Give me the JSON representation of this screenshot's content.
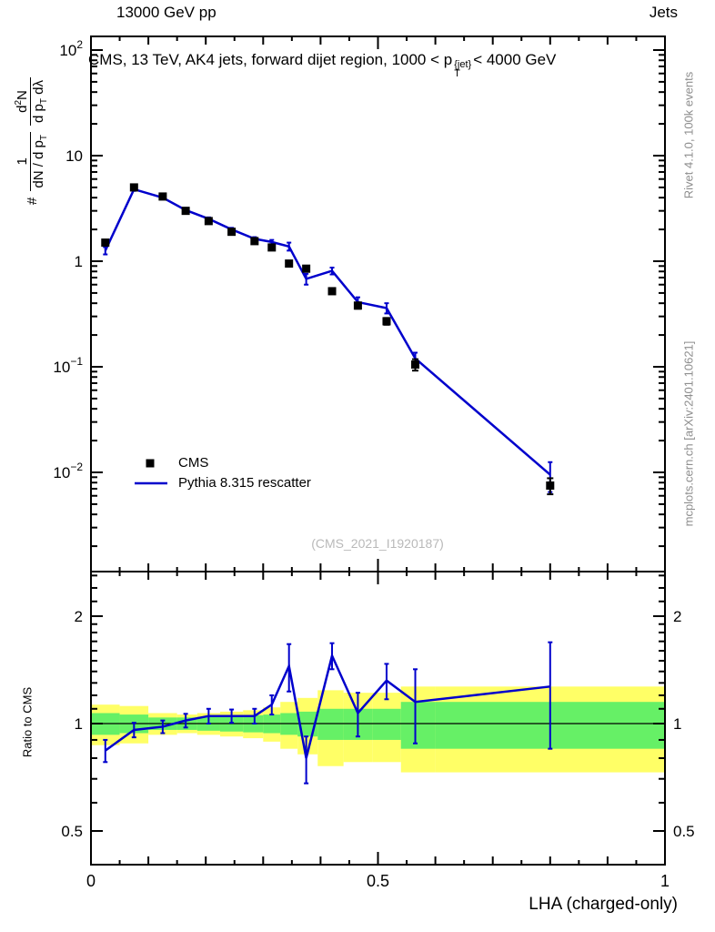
{
  "header": {
    "left": "13000 GeV pp",
    "right": "Jets"
  },
  "title": {
    "part1": "CMS, 13 TeV, AK4 jets, forward dijet region, 1000 < p",
    "sup": "{jet}",
    "sub": "T",
    "part2": "< 4000 GeV"
  },
  "ylabel": {
    "prefix": "#",
    "f1num": "1",
    "f1den_a": "dN / d p",
    "f1den_sub": "T",
    "f2num_a": "d",
    "f2num_sup": "2",
    "f2num_b": "N",
    "f2den_a": "d p",
    "f2den_sub": "T",
    "f2den_b": " dλ"
  },
  "side_notes": {
    "top": "Rivet 4.1.0, 100k events",
    "bottom": "mcplots.cern.ch [arXiv:2401.10621]"
  },
  "watermark": "(CMS_2021_I1920187)",
  "legend": [
    {
      "label": "CMS",
      "marker": "square",
      "color": "#000000"
    },
    {
      "label": "Pythia 8.315 rescatter",
      "marker": "line",
      "color": "#0000cc"
    }
  ],
  "ratio_label": "Ratio to CMS",
  "xlabel": "LHA (charged-only)",
  "colors": {
    "mc": "#0000cc",
    "data": "#000000",
    "band_outer": "#ffff66",
    "band_inner": "#66f066",
    "gray_text": "#8e8e8e",
    "watermark": "#b9b9b9"
  },
  "chart_data": {
    "type": "line",
    "title": "CMS, 13 TeV, AK4 jets, forward dijet region, 1000 < pT^{jet} < 4000 GeV",
    "xlabel": "LHA (charged-only)",
    "ylabel": "# 1/(dN/dpT) d2N/(dpT dλ)",
    "xlim": [
      0,
      1
    ],
    "ylim": [
      0.0012,
      135
    ],
    "yscale": "log",
    "grid": false,
    "legend_position": "middle-left",
    "x": [
      0.025,
      0.075,
      0.125,
      0.165,
      0.205,
      0.245,
      0.285,
      0.315,
      0.345,
      0.375,
      0.42,
      0.465,
      0.515,
      0.565,
      0.8
    ],
    "series": [
      {
        "name": "CMS",
        "style": "points",
        "color": "#000000",
        "values": [
          1.5,
          5.0,
          4.1,
          3.0,
          2.4,
          1.9,
          1.55,
          1.35,
          0.95,
          0.85,
          0.52,
          0.38,
          0.27,
          0.105,
          0.0075
        ],
        "yerr": [
          0.07,
          0.15,
          0.12,
          0.09,
          0.07,
          0.06,
          0.05,
          0.05,
          0.04,
          0.04,
          0.03,
          0.025,
          0.02,
          0.013,
          0.0013
        ]
      },
      {
        "name": "Pythia 8.315 rescatter",
        "style": "line",
        "color": "#0000cc",
        "values": [
          1.26,
          4.8,
          4.0,
          3.05,
          2.52,
          2.0,
          1.63,
          1.52,
          1.38,
          0.68,
          0.81,
          0.41,
          0.36,
          0.12,
          0.0095
        ],
        "yerr": [
          0.1,
          0.16,
          0.13,
          0.1,
          0.08,
          0.07,
          0.06,
          0.07,
          0.12,
          0.08,
          0.06,
          0.045,
          0.04,
          0.016,
          0.003
        ]
      }
    ],
    "ratio": {
      "label": "Ratio to CMS",
      "yscale": "log",
      "ylim": [
        0.4,
        2.67
      ],
      "values": [
        0.84,
        0.96,
        0.98,
        1.02,
        1.05,
        1.05,
        1.05,
        1.13,
        1.45,
        0.8,
        1.55,
        1.07,
        1.32,
        1.15,
        1.27
      ],
      "yerr": [
        0.06,
        0.045,
        0.04,
        0.045,
        0.05,
        0.045,
        0.05,
        0.07,
        0.22,
        0.12,
        0.13,
        0.15,
        0.15,
        0.27,
        0.42
      ],
      "bin_edges": [
        0,
        0.05,
        0.1,
        0.15,
        0.185,
        0.225,
        0.265,
        0.3,
        0.33,
        0.36,
        0.395,
        0.44,
        0.49,
        0.54,
        0.6,
        1.0
      ],
      "band_outer_lo": [
        0.87,
        0.88,
        0.93,
        0.94,
        0.93,
        0.92,
        0.91,
        0.89,
        0.85,
        0.82,
        0.76,
        0.78,
        0.78,
        0.73,
        0.73
      ],
      "band_outer_hi": [
        1.13,
        1.12,
        1.07,
        1.06,
        1.07,
        1.08,
        1.09,
        1.11,
        1.15,
        1.18,
        1.24,
        1.22,
        1.22,
        1.27,
        1.27
      ],
      "band_inner_lo": [
        0.93,
        0.94,
        0.96,
        0.96,
        0.955,
        0.95,
        0.945,
        0.94,
        0.93,
        0.92,
        0.9,
        0.9,
        0.9,
        0.85,
        0.85
      ],
      "band_inner_hi": [
        1.07,
        1.06,
        1.04,
        1.04,
        1.045,
        1.05,
        1.055,
        1.06,
        1.07,
        1.08,
        1.1,
        1.1,
        1.1,
        1.15,
        1.15
      ]
    },
    "axis_ticks": {
      "x": [
        {
          "v": 0,
          "label": "0"
        },
        {
          "v": 0.5,
          "label": "0.5"
        },
        {
          "v": 1,
          "label": "1"
        }
      ],
      "y_main": [
        {
          "v": 100,
          "label": "10",
          "exp": "2"
        },
        {
          "v": 10,
          "label": "10"
        },
        {
          "v": 1,
          "label": "1"
        },
        {
          "v": 0.1,
          "label": "10",
          "exp": "−1"
        },
        {
          "v": 0.01,
          "label": "10",
          "exp": "−2"
        }
      ],
      "y_ratio": [
        {
          "v": 2,
          "label": "2"
        },
        {
          "v": 1,
          "label": "1"
        },
        {
          "v": 0.5,
          "label": "0.5"
        }
      ]
    }
  }
}
